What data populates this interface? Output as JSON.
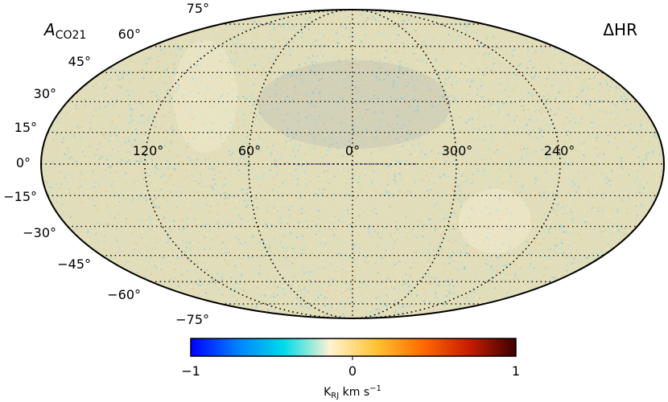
{
  "map": {
    "title_symbol": "A",
    "title_subscript": "CO21",
    "tag": "ΔHR",
    "projection": "Mollweide",
    "longitude_labels": [
      "120°",
      "60°",
      "0°",
      "300°",
      "240°"
    ],
    "latitude_labels_left": [
      "75°",
      "60°",
      "45°",
      "30°",
      "15°",
      "0°",
      "−15°",
      "−30°",
      "−45°",
      "−60°",
      "−75°"
    ],
    "noise_colors": [
      "#e8dfa6",
      "#c6e0c9",
      "#f0c986",
      "#9fd7dc",
      "#ead9a0",
      "#b6dbd1",
      "#f4e2b4",
      "#8fd0dc"
    ],
    "background_color": "#e2dcb6"
  },
  "colorbar": {
    "tick_labels": [
      "−1",
      "0",
      "1"
    ],
    "unit_main": "K",
    "unit_sub": "RJ",
    "unit_rest": " km s",
    "unit_sup": "−1",
    "stops": [
      "#0000ff",
      "#0080ff",
      "#00dbe9",
      "#fff3d2",
      "#ffc233",
      "#ff6a00",
      "#c71c00",
      "#3c0000"
    ]
  }
}
